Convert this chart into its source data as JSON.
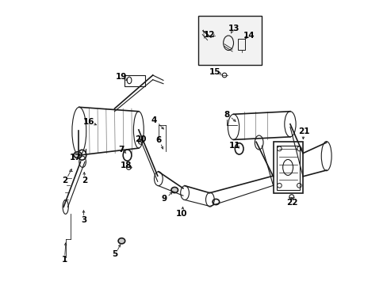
{
  "title": "",
  "bg_color": "#ffffff",
  "line_color": "#1a1a1a",
  "label_color": "#000000",
  "figsize": [
    4.89,
    3.6
  ],
  "dpi": 100,
  "labels_data": {
    "1": [
      0.043,
      0.085,
      0.048,
      0.155
    ],
    "2a": [
      0.044,
      0.365,
      0.073,
      0.415
    ],
    "2b": [
      0.113,
      0.365,
      0.113,
      0.405
    ],
    "3": [
      0.113,
      0.225,
      0.11,
      0.27
    ],
    "4": [
      0.36,
      0.578,
      0.4,
      0.54
    ],
    "5": [
      0.22,
      0.105,
      0.245,
      0.148
    ],
    "6": [
      0.375,
      0.508,
      0.395,
      0.468
    ],
    "7": [
      0.245,
      0.475,
      0.265,
      0.455
    ],
    "8": [
      0.615,
      0.598,
      0.655,
      0.568
    ],
    "9": [
      0.395,
      0.3,
      0.43,
      0.332
    ],
    "10": [
      0.458,
      0.248,
      0.462,
      0.282
    ],
    "11": [
      0.645,
      0.488,
      0.66,
      0.478
    ],
    "12": [
      0.555,
      0.882,
      0.565,
      0.875
    ],
    "13": [
      0.642,
      0.902,
      0.628,
      0.878
    ],
    "14": [
      0.695,
      0.878,
      0.675,
      0.858
    ],
    "15": [
      0.573,
      0.748,
      0.605,
      0.742
    ],
    "16": [
      0.128,
      0.572,
      0.165,
      0.558
    ],
    "17": [
      0.083,
      0.448,
      0.095,
      0.458
    ],
    "18": [
      0.262,
      0.418,
      0.27,
      0.412
    ],
    "19": [
      0.243,
      0.732,
      0.265,
      0.718
    ],
    "20": [
      0.312,
      0.512,
      0.312,
      0.502
    ],
    "21": [
      0.888,
      0.538,
      0.885,
      0.502
    ],
    "22": [
      0.847,
      0.288,
      0.845,
      0.308
    ]
  }
}
